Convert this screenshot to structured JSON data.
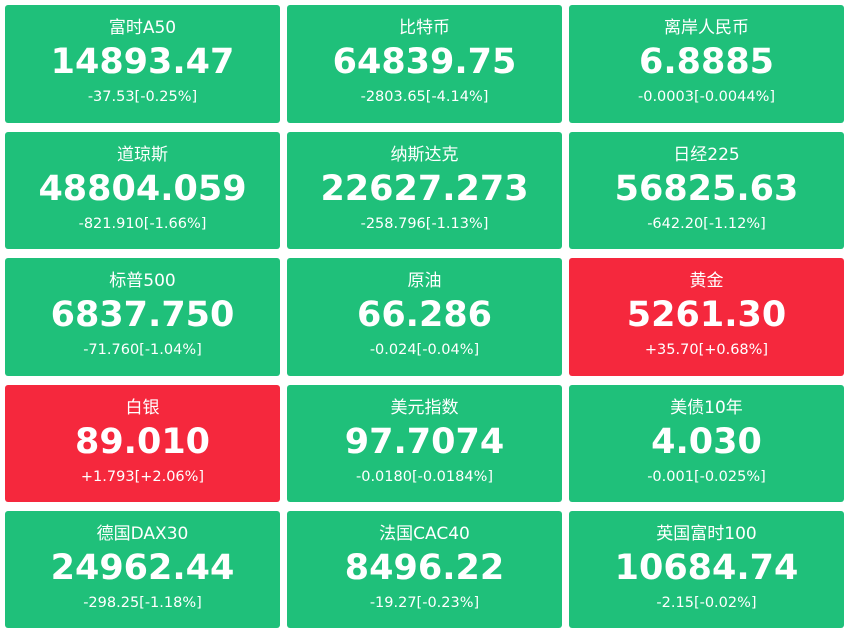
{
  "colors": {
    "down": "#1fc07a",
    "up": "#f5283d",
    "text": "#ffffff"
  },
  "tiles": [
    {
      "name": "富时A50",
      "price": "14893.47",
      "change": "-37.53[-0.25%]",
      "trend": "down"
    },
    {
      "name": "比特币",
      "price": "64839.75",
      "change": "-2803.65[-4.14%]",
      "trend": "down"
    },
    {
      "name": "离岸人民币",
      "price": "6.8885",
      "change": "-0.0003[-0.0044%]",
      "trend": "down"
    },
    {
      "name": "道琼斯",
      "price": "48804.059",
      "change": "-821.910[-1.66%]",
      "trend": "down"
    },
    {
      "name": "纳斯达克",
      "price": "22627.273",
      "change": "-258.796[-1.13%]",
      "trend": "down"
    },
    {
      "name": "日经225",
      "price": "56825.63",
      "change": "-642.20[-1.12%]",
      "trend": "down"
    },
    {
      "name": "标普500",
      "price": "6837.750",
      "change": "-71.760[-1.04%]",
      "trend": "down"
    },
    {
      "name": "原油",
      "price": "66.286",
      "change": "-0.024[-0.04%]",
      "trend": "down"
    },
    {
      "name": "黄金",
      "price": "5261.30",
      "change": "+35.70[+0.68%]",
      "trend": "up"
    },
    {
      "name": "白银",
      "price": "89.010",
      "change": "+1.793[+2.06%]",
      "trend": "up"
    },
    {
      "name": "美元指数",
      "price": "97.7074",
      "change": "-0.0180[-0.0184%]",
      "trend": "down"
    },
    {
      "name": "美债10年",
      "price": "4.030",
      "change": "-0.001[-0.025%]",
      "trend": "down"
    },
    {
      "name": "德国DAX30",
      "price": "24962.44",
      "change": "-298.25[-1.18%]",
      "trend": "down"
    },
    {
      "name": "法国CAC40",
      "price": "8496.22",
      "change": "-19.27[-0.23%]",
      "trend": "down"
    },
    {
      "name": "英国富时100",
      "price": "10684.74",
      "change": "-2.15[-0.02%]",
      "trend": "down"
    }
  ]
}
